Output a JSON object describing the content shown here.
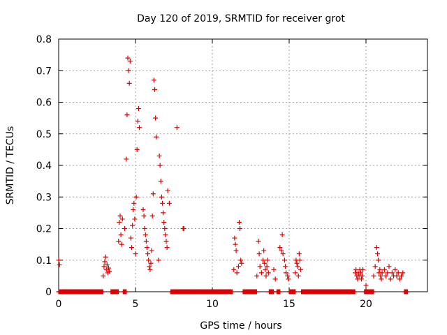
{
  "chart_data": {
    "type": "scatter",
    "title": "Day 120 of 2019, SRMTID for receiver grot",
    "xlabel": "GPS time / hours",
    "ylabel": "SRMTID / TECUs",
    "xlim": [
      0,
      24
    ],
    "ylim": [
      0,
      0.8
    ],
    "xticks": [
      0,
      5,
      10,
      15,
      20
    ],
    "xtick_labels": [
      "0",
      "5",
      "10",
      "15",
      "20"
    ],
    "yticks": [
      0,
      0.1,
      0.2,
      0.3,
      0.4,
      0.5,
      0.6,
      0.7,
      0.8
    ],
    "ytick_labels": [
      "0",
      "0.1",
      "0.2",
      "0.3",
      "0.4",
      "0.5",
      "0.6",
      "0.7",
      "0.8"
    ],
    "grid": true,
    "marker": "plus",
    "color": "#dd0000",
    "series": [
      {
        "name": "SRMTID",
        "x": [
          0.0,
          0.05,
          2.9,
          2.95,
          3.0,
          3.05,
          3.1,
          3.15,
          3.2,
          3.25,
          3.3,
          3.9,
          3.95,
          4.0,
          4.05,
          4.1,
          4.15,
          4.3,
          4.4,
          4.45,
          4.5,
          4.55,
          4.6,
          4.65,
          4.7,
          4.75,
          4.8,
          4.85,
          4.9,
          4.95,
          5.0,
          5.05,
          5.1,
          5.15,
          5.2,
          5.25,
          5.5,
          5.55,
          5.6,
          5.65,
          5.7,
          5.75,
          5.8,
          5.85,
          5.9,
          5.95,
          6.0,
          6.05,
          6.1,
          6.15,
          6.2,
          6.25,
          6.3,
          6.35,
          6.5,
          6.55,
          6.6,
          6.65,
          6.7,
          6.75,
          6.8,
          6.85,
          6.9,
          6.95,
          7.0,
          7.05,
          7.1,
          7.2,
          7.7,
          8.1,
          8.15,
          11.4,
          11.45,
          11.5,
          11.55,
          11.6,
          11.7,
          11.75,
          11.8,
          11.85,
          11.9,
          12.9,
          13.0,
          13.05,
          13.1,
          13.2,
          13.3,
          13.35,
          13.4,
          13.45,
          13.5,
          13.55,
          13.6,
          13.65,
          14.0,
          14.1,
          14.4,
          14.5,
          14.55,
          14.6,
          14.7,
          14.75,
          14.8,
          14.9,
          14.95,
          15.4,
          15.45,
          15.5,
          15.55,
          15.6,
          15.65,
          15.7,
          15.75,
          19.3,
          19.35,
          19.4,
          19.45,
          19.5,
          19.55,
          19.6,
          19.65,
          19.7,
          19.75,
          19.8,
          20.0,
          20.5,
          20.6,
          20.7,
          20.75,
          20.8,
          20.85,
          20.9,
          20.95,
          21.0,
          21.05,
          21.2,
          21.3,
          21.4,
          21.5,
          21.6,
          21.7,
          21.8,
          21.9,
          22.0,
          22.1,
          22.2,
          22.3,
          22.4
        ],
        "y": [
          0.1,
          0.085,
          0.05,
          0.08,
          0.095,
          0.11,
          0.07,
          0.085,
          0.06,
          0.075,
          0.065,
          0.16,
          0.22,
          0.24,
          0.18,
          0.15,
          0.23,
          0.2,
          0.42,
          0.56,
          0.74,
          0.7,
          0.66,
          0.73,
          0.17,
          0.14,
          0.21,
          0.26,
          0.28,
          0.23,
          0.12,
          0.3,
          0.45,
          0.54,
          0.58,
          0.52,
          0.26,
          0.24,
          0.2,
          0.18,
          0.16,
          0.14,
          0.12,
          0.1,
          0.08,
          0.07,
          0.09,
          0.13,
          0.24,
          0.31,
          0.67,
          0.64,
          0.55,
          0.49,
          0.1,
          0.43,
          0.4,
          0.35,
          0.3,
          0.28,
          0.25,
          0.22,
          0.2,
          0.18,
          0.16,
          0.14,
          0.32,
          0.28,
          0.52,
          0.2,
          0.2,
          0.07,
          0.17,
          0.15,
          0.13,
          0.06,
          0.08,
          0.22,
          0.2,
          0.1,
          0.09,
          0.05,
          0.16,
          0.12,
          0.08,
          0.06,
          0.1,
          0.13,
          0.09,
          0.07,
          0.05,
          0.08,
          0.1,
          0.06,
          0.07,
          0.04,
          0.14,
          0.13,
          0.18,
          0.12,
          0.1,
          0.08,
          0.06,
          0.05,
          0.04,
          0.06,
          0.1,
          0.09,
          0.08,
          0.05,
          0.12,
          0.1,
          0.07,
          0.06,
          0.07,
          0.05,
          0.04,
          0.06,
          0.05,
          0.07,
          0.06,
          0.04,
          0.05,
          0.07,
          0.02,
          0.05,
          0.08,
          0.14,
          0.12,
          0.1,
          0.06,
          0.07,
          0.05,
          0.04,
          0.06,
          0.07,
          0.05,
          0.06,
          0.08,
          0.04,
          0.06,
          0.05,
          0.07,
          0.05,
          0.06,
          0.04,
          0.05,
          0.06
        ]
      },
      {
        "name": "baseline",
        "x_ranges": [
          [
            0.0,
            2.9
          ],
          [
            3.4,
            3.9
          ],
          [
            4.2,
            4.4
          ],
          [
            7.3,
            11.3
          ],
          [
            12.0,
            12.9
          ],
          [
            13.7,
            14.0
          ],
          [
            14.2,
            14.4
          ],
          [
            15.0,
            15.4
          ],
          [
            15.8,
            19.3
          ],
          [
            19.9,
            20.5
          ],
          [
            22.5,
            22.7
          ]
        ],
        "y": 0.0
      }
    ]
  }
}
